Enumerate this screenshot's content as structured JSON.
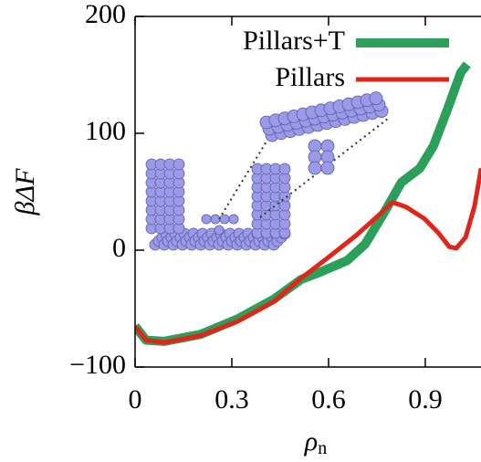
{
  "chart_data": {
    "type": "line",
    "ylabel": "βΔF",
    "xlabel": "ρ",
    "xlabel_subscript": "n",
    "xlim": [
      0,
      1.073
    ],
    "ylim": [
      -100,
      200
    ],
    "xticks": [
      0,
      0.3,
      0.6,
      0.9
    ],
    "yticks": [
      {
        "value": -100,
        "label": "−100"
      },
      0,
      100,
      200
    ],
    "legend": "top-right",
    "series": [
      {
        "name": "Pillars+T",
        "color": "#2ca05a",
        "width": 10,
        "x": [
          0,
          0.034,
          0.091,
          0.204,
          0.317,
          0.43,
          0.515,
          0.572,
          0.657,
          0.713,
          0.77,
          0.826,
          0.883,
          0.925,
          0.968,
          1.01,
          1.03
        ],
        "values": [
          -65,
          -77,
          -78,
          -72,
          -59,
          -42,
          -25,
          -19,
          -9,
          5,
          31,
          58,
          70,
          89,
          120,
          152,
          159
        ]
      },
      {
        "name": "Pillars",
        "color": "#e0261a",
        "width": 5,
        "x": [
          0,
          0.034,
          0.091,
          0.204,
          0.317,
          0.43,
          0.515,
          0.6,
          0.685,
          0.756,
          0.798,
          0.84,
          0.897,
          0.94,
          0.974,
          0.996,
          1.025,
          1.053,
          1.073
        ],
        "values": [
          -65,
          -77,
          -79,
          -73,
          -61,
          -44,
          -24,
          -6,
          12.5,
          30,
          41,
          37,
          27,
          15,
          3,
          1.6,
          11,
          38,
          70
        ]
      }
    ]
  }
}
